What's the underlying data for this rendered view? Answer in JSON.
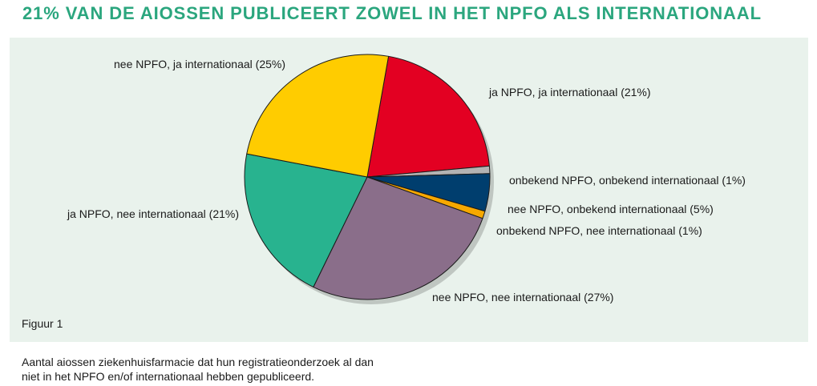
{
  "title": "21% VAN DE AIOSSEN PUBLICEERT ZOWEL IN HET NPFO ALS INTERNATIONAAL",
  "figure_label": "Figuur 1",
  "caption_lines": [
    "Aantal aiossen ziekenhuisfarmacie dat hun registratieonderzoek al dan",
    "niet in het NPFO en/of internationaal hebben gepubliceerd."
  ],
  "chart_data": {
    "type": "pie",
    "start_angle_deg": -80,
    "direction": "clockwise",
    "slices": [
      {
        "label": "ja NPFO, ja internationaal (21%)",
        "value": 21,
        "color": "#e30022"
      },
      {
        "label": "onbekend NPFO, onbekend internationaal (1%)",
        "value": 1,
        "color": "#b3b3b3"
      },
      {
        "label": "nee NPFO, onbekend internationaal (5%)",
        "value": 5,
        "color": "#003e6e"
      },
      {
        "label": "onbekend NPFO, nee internationaal (1%)",
        "value": 1,
        "color": "#f7a800"
      },
      {
        "label": "nee NPFO, nee internationaal (27%)",
        "value": 27,
        "color": "#8a6e8a"
      },
      {
        "label": "ja NPFO, nee internationaal (21%)",
        "value": 21,
        "color": "#28b38f"
      },
      {
        "label": "nee NPFO, ja internationaal (25%)",
        "value": 25,
        "color": "#ffcc00"
      }
    ]
  }
}
